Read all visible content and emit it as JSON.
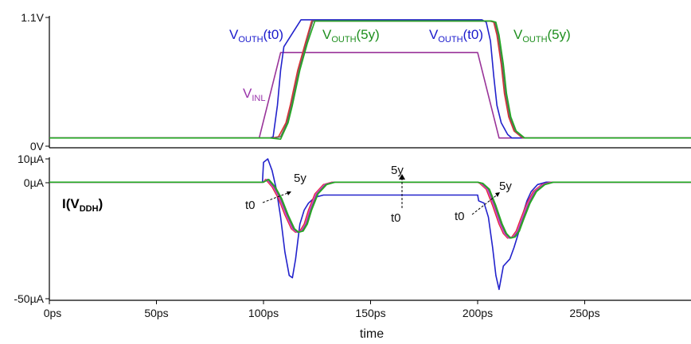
{
  "chart_data": [
    {
      "type": "line",
      "panel": "top",
      "xlabel": "",
      "ylabel": "",
      "xlim": [
        0,
        300
      ],
      "ylim": [
        0,
        1.1
      ],
      "y_ticks": [
        "1.1V",
        "0V"
      ],
      "grid": false,
      "annotations": [
        {
          "main": "V",
          "sub": "OUTH",
          "tail": "(t0)",
          "color": "#1a1acc"
        },
        {
          "main": "V",
          "sub": "OUTH",
          "tail": "(5y)",
          "color": "#1f8f1f"
        },
        {
          "main": "V",
          "sub": "OUTH",
          "tail": "(t0)",
          "color": "#1a1acc"
        },
        {
          "main": "V",
          "sub": "OUTH",
          "tail": "(5y)",
          "color": "#1f8f1f"
        },
        {
          "main": "V",
          "sub": "INL",
          "tail": "",
          "color": "#9933aa"
        }
      ],
      "series": [
        {
          "color": "#993399",
          "x": [
            0,
            98,
            108,
            200,
            210,
            300
          ],
          "y": [
            0.07,
            0.07,
            0.8,
            0.8,
            0.07,
            0.07
          ]
        },
        {
          "color": "#2222cc",
          "x": [
            0,
            103,
            104.5,
            106.5,
            108,
            109.5,
            114,
            117.5,
            118.7,
            202,
            204,
            206,
            207.5,
            209,
            211,
            214,
            216,
            300
          ],
          "y": [
            0.07,
            0.07,
            0.08,
            0.35,
            0.65,
            0.85,
            0.98,
            1.08,
            1.08,
            1.08,
            1.06,
            0.9,
            0.6,
            0.35,
            0.2,
            0.1,
            0.07,
            0.07
          ]
        },
        {
          "color": "#e03030",
          "x": [
            0,
            104,
            107,
            110.5,
            112.5,
            116,
            119.5,
            122.5,
            205.5,
            207.5,
            209,
            211,
            212.5,
            214.5,
            217,
            221,
            300
          ],
          "y": [
            0.07,
            0.07,
            0.08,
            0.2,
            0.35,
            0.65,
            0.88,
            1.07,
            1.07,
            1.06,
            0.95,
            0.7,
            0.45,
            0.25,
            0.13,
            0.07,
            0.07
          ]
        },
        {
          "color": "#666666",
          "x": [
            0,
            105,
            108,
            111,
            113,
            116.5,
            120,
            123,
            206,
            208,
            209.5,
            211.5,
            213,
            215,
            217.5,
            221.5,
            300
          ],
          "y": [
            0.07,
            0.07,
            0.08,
            0.2,
            0.35,
            0.65,
            0.88,
            1.07,
            1.07,
            1.06,
            0.95,
            0.7,
            0.45,
            0.25,
            0.13,
            0.07,
            0.07
          ]
        },
        {
          "color": "#22aa22",
          "x": [
            0,
            103,
            108,
            111.5,
            113.5,
            117,
            120.5,
            124,
            206.5,
            208.5,
            210,
            212,
            213.5,
            215.5,
            218,
            222,
            300
          ],
          "y": [
            0.07,
            0.07,
            0.06,
            0.2,
            0.35,
            0.65,
            0.88,
            1.07,
            1.07,
            1.06,
            0.95,
            0.7,
            0.45,
            0.25,
            0.13,
            0.07,
            0.07
          ]
        }
      ]
    },
    {
      "type": "line",
      "panel": "bottom",
      "xlabel": "time",
      "ylabel": "",
      "xlim": [
        0,
        300
      ],
      "ylim": [
        -50,
        10
      ],
      "x_ticks": [
        "0ps",
        "50ps",
        "100ps",
        "150ps",
        "200ps",
        "250ps"
      ],
      "y_ticks": [
        "10µA",
        "0µA",
        "-50µA"
      ],
      "grid": false,
      "annotations": [
        {
          "main": "I(V",
          "sub": "DDH",
          "tail": ")",
          "color": "#000000"
        },
        {
          "text": "5y"
        },
        {
          "text": "t0"
        },
        {
          "text": "5y"
        },
        {
          "text": "t0"
        },
        {
          "text": "5y"
        },
        {
          "text": "t0"
        }
      ],
      "series": [
        {
          "color": "#2222cc",
          "x": [
            0,
            99.5,
            100,
            102,
            104,
            106,
            108,
            110,
            112,
            113.5,
            115,
            117,
            119,
            121,
            124,
            128,
            200,
            200.5,
            203,
            205,
            207,
            208.5,
            210,
            212,
            215,
            217,
            219,
            221,
            223,
            225,
            228,
            232,
            235,
            300
          ],
          "y": [
            0,
            0,
            8.5,
            10,
            5,
            -3,
            -15,
            -30,
            -40,
            -41,
            -33,
            -18,
            -12,
            -9,
            -6.5,
            -5.5,
            -5.5,
            -8,
            -9,
            -15,
            -28,
            -40,
            -46,
            -36,
            -33,
            -28,
            -22,
            -14,
            -8,
            -4,
            -1,
            0,
            0,
            0
          ]
        },
        {
          "color": "#e03030",
          "x": [
            0,
            100,
            101,
            104,
            107,
            110,
            113,
            115,
            117,
            119,
            121,
            124,
            128,
            132,
            200,
            201,
            204,
            207,
            210,
            212,
            214,
            216,
            218,
            220,
            223,
            226,
            230,
            234,
            300
          ],
          "y": [
            0,
            0,
            1.2,
            -2,
            -7,
            -14,
            -20,
            -21.5,
            -21,
            -18,
            -12,
            -5,
            -1,
            0,
            0,
            -0.5,
            -3,
            -10,
            -18,
            -22,
            -24,
            -23.5,
            -21,
            -16,
            -9,
            -4,
            -1,
            0,
            0
          ]
        },
        {
          "color": "#e040e0",
          "x": [
            0,
            100,
            101.5,
            104.5,
            107.5,
            110.5,
            113.5,
            115.5,
            117.5,
            119.5,
            121.5,
            124.5,
            128.5,
            132.5,
            200,
            201.5,
            204.5,
            207.5,
            210.5,
            212.5,
            214.5,
            216.5,
            218.5,
            220.5,
            223.5,
            226.5,
            230.5,
            234.5,
            300
          ],
          "y": [
            0,
            0,
            1.2,
            -2,
            -7,
            -14,
            -20,
            -21.5,
            -21,
            -18,
            -12,
            -5,
            -1,
            0,
            0,
            -0.5,
            -3,
            -10,
            -18,
            -22,
            -24,
            -23.5,
            -21,
            -16,
            -9,
            -4,
            -1,
            0,
            0
          ]
        },
        {
          "color": "#666666",
          "x": [
            0,
            100,
            102,
            105,
            108,
            111,
            114,
            116,
            118,
            120,
            122,
            125,
            129,
            133,
            200,
            202,
            205,
            208,
            211,
            213,
            215,
            217,
            219,
            221,
            224,
            227,
            231,
            235,
            300
          ],
          "y": [
            0,
            0,
            1.2,
            -2,
            -7,
            -14,
            -20,
            -21.5,
            -21,
            -18,
            -12,
            -5,
            -1,
            0,
            0,
            -0.5,
            -3,
            -10,
            -18,
            -22,
            -24,
            -23.5,
            -21,
            -16,
            -9,
            -4,
            -1,
            0,
            0
          ]
        },
        {
          "color": "#22aa22",
          "x": [
            0,
            100,
            102.5,
            105.5,
            108.5,
            111.5,
            114.5,
            116.5,
            118.5,
            120.5,
            122.5,
            125.5,
            129.5,
            133.5,
            200,
            202.5,
            205.5,
            208.5,
            211.5,
            213.5,
            215.5,
            217.5,
            219.5,
            221.5,
            224.5,
            227.5,
            231.5,
            235.5,
            300
          ],
          "y": [
            0,
            0,
            1.2,
            -2,
            -7,
            -14,
            -20,
            -21.5,
            -21,
            -18,
            -12,
            -5,
            -1,
            0,
            0,
            -0.5,
            -3,
            -10,
            -18,
            -22,
            -24,
            -23.5,
            -21,
            -16,
            -9,
            -4,
            -1,
            0,
            0
          ]
        }
      ]
    }
  ]
}
